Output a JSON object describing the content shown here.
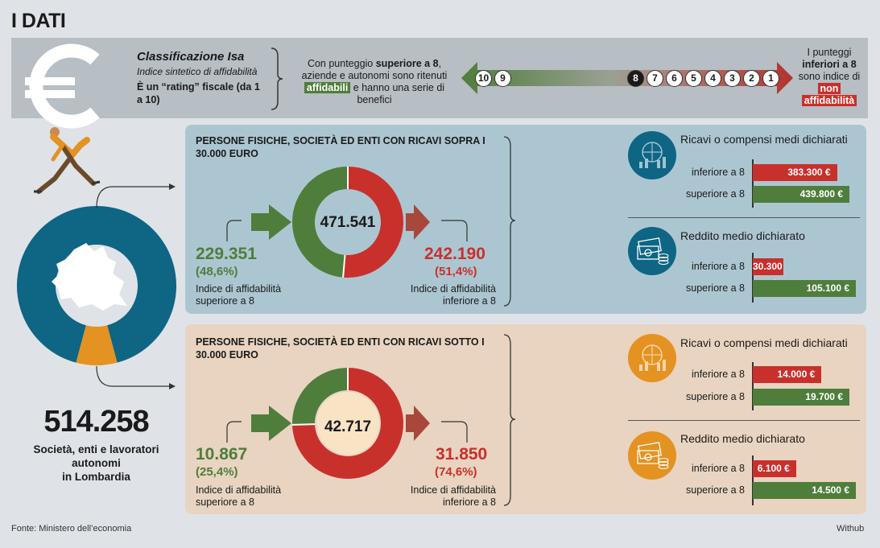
{
  "title": "I DATI",
  "isa": {
    "title": "Classificazione Isa",
    "subtitle": "Indice sintetico di affidabilità",
    "rating": "È un “rating” fiscale (da 1 a 10)"
  },
  "scale": {
    "superior_pre": "Con punteggio ",
    "superior_bold": "superiore a 8",
    "superior_mid": ", aziende e autonomi sono ritenuti",
    "superior_tag": "affidabili",
    "superior_post": " e hanno una serie di benefici",
    "inferior_pre": "I punteggi ",
    "inferior_bold": "inferiori a 8",
    "inferior_mid": " sono indice di",
    "inferior_tag1": "non",
    "inferior_tag2": "affidabilità",
    "scores_left": [
      "10",
      "9"
    ],
    "scores_right": [
      "8",
      "7",
      "6",
      "5",
      "4",
      "3",
      "2",
      "1"
    ]
  },
  "total": {
    "value": "514.258",
    "label_line1": "Società, enti e lavoratori",
    "label_line2": "autonomi",
    "label_line3": "in Lombardia"
  },
  "colors": {
    "green": "#4f7d3b",
    "red": "#c8302c",
    "blue": "#0e6584",
    "orange": "#e49221"
  },
  "chart_data": [
    {
      "type": "pie",
      "title": "",
      "categories": [
        "Società, enti e lavoratori autonomi con ricavi sopra i 30.000 euro",
        "Società, enti e lavoratori autonomi con ricavi sotto i 30.000 euro"
      ],
      "values": [
        471541,
        42717
      ],
      "donut": true
    },
    {
      "type": "pie",
      "title": "PERSONE FISICHE, SOCIETÀ ED ENTI CON RICAVI SOPRA I 30.000 EURO",
      "center": "471.541",
      "categories": [
        "Indice di affidabilità superiore a 8",
        "Indice di affidabilità inferiore a 8"
      ],
      "values": [
        229351,
        242190
      ],
      "value_labels": [
        "229.351",
        "242.190"
      ],
      "percent_labels": [
        "(48,6%)",
        "(51,4%)"
      ],
      "donut": true
    },
    {
      "type": "bar",
      "title": "Ricavi o compensi medi dichiarati",
      "categories": [
        "inferiore a 8",
        "superiore a 8"
      ],
      "values": [
        383300,
        439800
      ],
      "value_labels": [
        "383.300 €",
        "439.800 €"
      ]
    },
    {
      "type": "bar",
      "title": "Reddito medio dichiarato",
      "categories": [
        "inferiore a 8",
        "superiore a 8"
      ],
      "values": [
        30300,
        105100
      ],
      "value_labels": [
        "30.300 €",
        "105.100 €"
      ]
    },
    {
      "type": "pie",
      "title": "PERSONE FISICHE, SOCIETÀ ED ENTI CON RICAVI SOTTO I 30.000 EURO",
      "center": "42.717",
      "categories": [
        "Indice di affidabilità superiore a 8",
        "Indice di affidabilità inferiore a 8"
      ],
      "values": [
        10867,
        31850
      ],
      "value_labels": [
        "10.867",
        "31.850"
      ],
      "percent_labels": [
        "(25,4%)",
        "(74,6%)"
      ],
      "donut": true
    },
    {
      "type": "bar",
      "title": "Ricavi o compensi medi dichiarati",
      "categories": [
        "inferiore a 8",
        "superiore a 8"
      ],
      "values": [
        14000,
        19700
      ],
      "value_labels": [
        "14.000 €",
        "19.700 €"
      ]
    },
    {
      "type": "bar",
      "title": "Reddito medio dichiarato",
      "categories": [
        "inferiore a 8",
        "superiore a 8"
      ],
      "values": [
        6100,
        14500
      ],
      "value_labels": [
        "6.100 €",
        "14.500 €"
      ]
    }
  ],
  "labels": {
    "superior_line1": "Indice di affidabilità",
    "superior_line2": "superiore a 8",
    "inferior_line1": "Indice di affidabilità",
    "inferior_line2": "inferiore a 8"
  },
  "footer": {
    "source": "Fonte: Ministero dell’economia",
    "credit": "Withub"
  }
}
